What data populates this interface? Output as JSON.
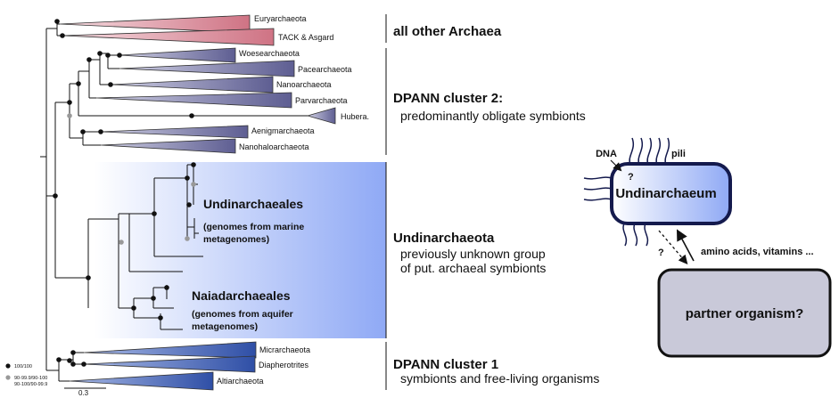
{
  "tree": {
    "taxa": {
      "euryarchaeota": "Euryarchaeota",
      "tack": "TACK & Asgard",
      "woesearchaeota": "Woesearchaeota",
      "pacearchaeota": "Pacearchaeota",
      "nanoarchaeota": "Nanoarchaeota",
      "parvarchaeota": "Parvarchaeota",
      "hubera": "Hubera.",
      "aenigmarchaeota": "Aenigmarchaeota",
      "nanohaloarchaeota": "Nanohaloarchaeota",
      "micrarchaeota": "Micrarchaeota",
      "diapherotrites": "Diapherotrites",
      "altiarchaeota": "Altiarchaeota"
    },
    "undinarchaeales": {
      "title": "Undinarchaeales",
      "sub1": "(genomes from marine",
      "sub2": "metagenomes)"
    },
    "naiadarchaeales": {
      "title": "Naiadarchaeales",
      "sub1": "(genomes from aquifer",
      "sub2": "metagenomes)"
    },
    "legend": {
      "black": "100/100",
      "grey1": "90-99.9/90-100",
      "grey2": "90-100/90-99.9",
      "black_color": "#111111",
      "grey_color": "#999999"
    },
    "scale": "0.3"
  },
  "groups": {
    "other_archaea": {
      "title": "all other Archaea"
    },
    "dpann2": {
      "title": "DPANN cluster 2:",
      "desc": "predominantly obligate symbionts"
    },
    "undinarchaeota": {
      "title": "Undinarchaeota",
      "desc1": "previously unknown group",
      "desc2": "of put. archaeal symbionts"
    },
    "dpann1": {
      "title": "DPANN cluster 1",
      "desc": "symbionts and free-living organisms"
    }
  },
  "cartoon": {
    "dna": "DNA",
    "pili": "pili",
    "question": "?",
    "cell": "Undinarchaeum",
    "arrow_question": "?",
    "arrow_label": "amino acids, vitamins ...",
    "partner": "partner organism?"
  },
  "colors": {
    "pink": "#d97a8c",
    "purple": "#6b6b9c",
    "blue": "#3c5bb0",
    "highlight": "#8fa9f5",
    "cell_border": "#141a4d",
    "partner_fill": "#c9c9d9"
  }
}
